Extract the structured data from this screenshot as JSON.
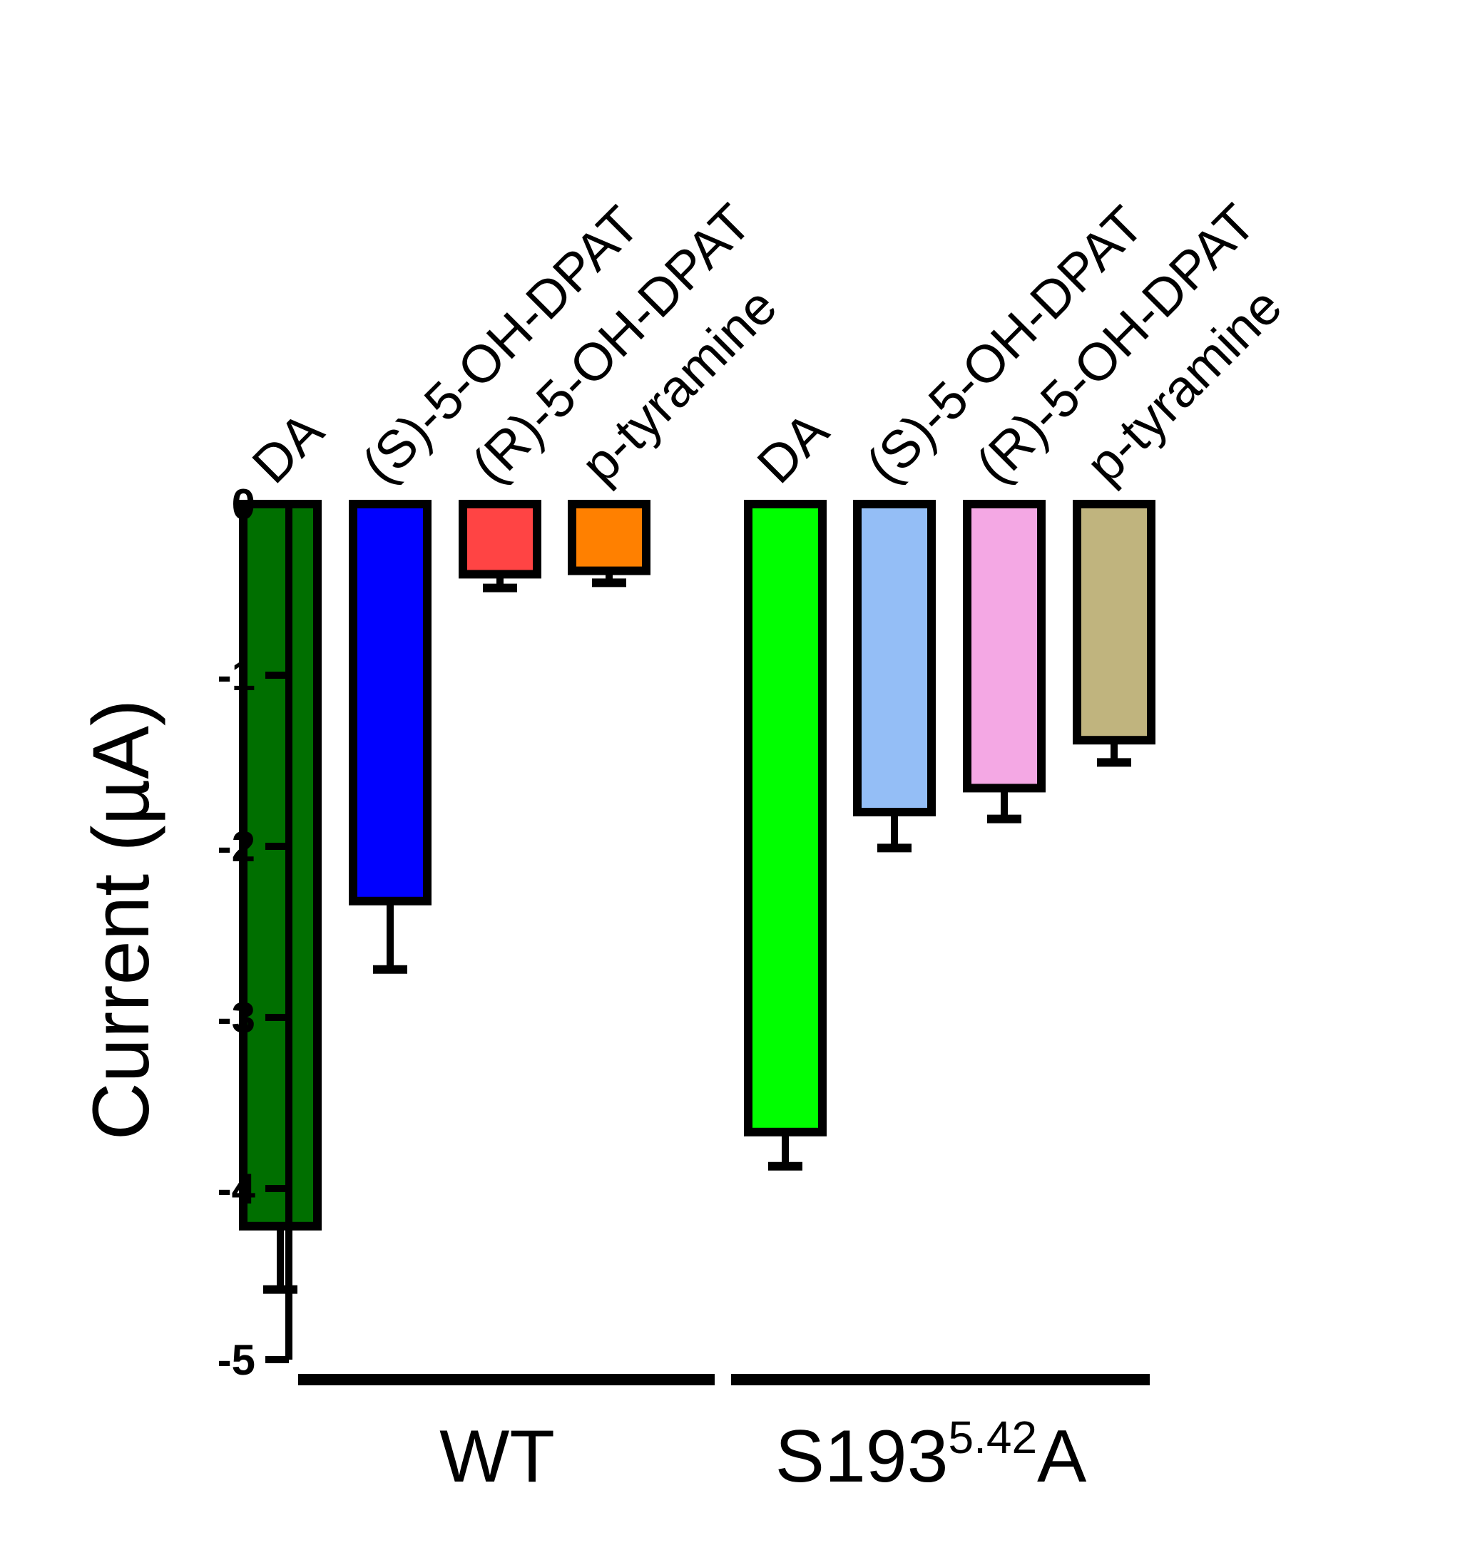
{
  "chart_data": {
    "type": "bar",
    "ylabel": "Current (µA)",
    "ylim": [
      -5,
      0
    ],
    "yticks": [
      0,
      -1,
      -2,
      -3,
      -4,
      -5
    ],
    "ytick_labels": [
      "0",
      "-1",
      "-2",
      "-3",
      "-4",
      "-5"
    ],
    "grid": false,
    "bars": [
      {
        "label": "DA",
        "group": "WT",
        "value": -4.22,
        "error": 0.37,
        "color": "#006f00"
      },
      {
        "label": "(S)-5-OH-DPAT",
        "group": "WT",
        "value": -2.32,
        "error": 0.4,
        "color": "#0000ff"
      },
      {
        "label": "(R)-5-OH-DPAT",
        "group": "WT",
        "value": -0.41,
        "error": 0.08,
        "color": "#ff4444"
      },
      {
        "label": "p-tyramine",
        "group": "WT",
        "value": -0.39,
        "error": 0.07,
        "color": "#ff8000"
      },
      {
        "label": "DA",
        "group": "S193A",
        "value": -3.67,
        "error": 0.2,
        "color": "#00ff00"
      },
      {
        "label": "(S)-5-OH-DPAT",
        "group": "S193A",
        "value": -1.8,
        "error": 0.21,
        "color": "#94bef6"
      },
      {
        "label": "(R)-5-OH-DPAT",
        "group": "S193A",
        "value": -1.66,
        "error": 0.18,
        "color": "#f4a8e4"
      },
      {
        "label": "p-tyramine",
        "group": "S193A",
        "value": -1.38,
        "error": 0.13,
        "color": "#c0b47e"
      }
    ],
    "groups": [
      {
        "id": "WT",
        "label": "WT"
      },
      {
        "id": "S193A",
        "label_main": "S193",
        "label_sup": "5.42",
        "label_suffix": "A"
      }
    ]
  }
}
